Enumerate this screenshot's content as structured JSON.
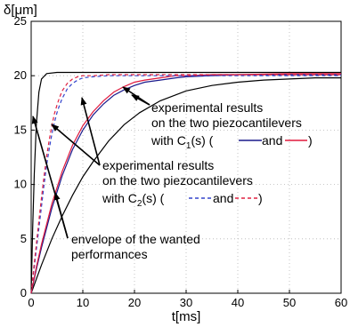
{
  "chart_data": {
    "type": "line",
    "xlabel": "t[ms]",
    "ylabel": "δ[μm]",
    "xlim": [
      0,
      60
    ],
    "ylim": [
      0,
      25
    ],
    "xticks": [
      "0",
      "10",
      "20",
      "30",
      "40",
      "50",
      "60"
    ],
    "yticks": [
      "0",
      "5",
      "10",
      "15",
      "20",
      "25"
    ],
    "grid": true,
    "series": [
      {
        "color": "#000000",
        "style": "solid",
        "x": [
          0,
          0.3,
          0.6,
          1.0,
          1.5,
          2.0,
          3,
          5,
          10,
          20,
          40,
          60
        ],
        "y": [
          0,
          6,
          11,
          15.5,
          18.5,
          19.7,
          20.2,
          20.3,
          20.3,
          20.3,
          20.3,
          20.3
        ]
      },
      {
        "color": "#000000",
        "style": "solid",
        "x": [
          0,
          2,
          4,
          6,
          8,
          10,
          12,
          15,
          18,
          21,
          25,
          30,
          35,
          40,
          45,
          50,
          55,
          60
        ],
        "y": [
          0,
          2.6,
          5.0,
          7.1,
          9.0,
          10.7,
          12.1,
          14.0,
          15.5,
          16.6,
          17.7,
          18.6,
          19.1,
          19.4,
          19.6,
          19.7,
          19.8,
          19.8
        ]
      },
      {
        "color": "#1a1a8c",
        "style": "solid",
        "x": [
          0,
          1,
          2,
          4,
          6,
          8,
          10,
          12,
          14,
          16,
          18,
          20,
          22,
          25,
          28,
          30,
          35,
          40,
          50,
          60
        ],
        "y": [
          0,
          2.2,
          4.2,
          7.8,
          10.8,
          13.2,
          15.0,
          16.4,
          17.4,
          18.2,
          18.7,
          19.1,
          19.4,
          19.6,
          19.8,
          19.9,
          20.0,
          20.1,
          20.1,
          20.1
        ]
      },
      {
        "color": "#e0183c",
        "style": "solid",
        "x": [
          0,
          1,
          2,
          4,
          6,
          8,
          10,
          12,
          14,
          16,
          18,
          20,
          22,
          25,
          28,
          30,
          35,
          40,
          50,
          60
        ],
        "y": [
          0,
          2.4,
          4.5,
          8.2,
          11.2,
          13.6,
          15.4,
          16.7,
          17.7,
          18.5,
          19.0,
          19.4,
          19.6,
          19.8,
          20.0,
          20.0,
          20.1,
          20.1,
          20.2,
          20.2
        ]
      },
      {
        "color": "#3344cc",
        "style": "dashed",
        "x": [
          0,
          0.5,
          1,
          1.5,
          2,
          2.5,
          3,
          3.5,
          4,
          4.5,
          5,
          5.5,
          6,
          7,
          8,
          9,
          10,
          12,
          15,
          20,
          30,
          40,
          60
        ],
        "y": [
          0,
          2.0,
          4.0,
          6.0,
          8.0,
          10.0,
          11.8,
          13.3,
          14.6,
          15.7,
          16.6,
          17.3,
          17.9,
          18.8,
          19.3,
          19.6,
          19.8,
          19.9,
          20.0,
          20.0,
          20.0,
          20.0,
          20.0
        ]
      },
      {
        "color": "#e02040",
        "style": "dashed",
        "x": [
          0,
          0.5,
          1,
          1.5,
          2,
          2.5,
          3,
          3.5,
          4,
          4.5,
          5,
          5.5,
          6,
          7,
          8,
          9,
          10,
          12,
          15,
          20,
          30,
          40,
          60
        ],
        "y": [
          0,
          2.3,
          4.5,
          6.7,
          8.8,
          10.8,
          12.6,
          14.1,
          15.4,
          16.5,
          17.3,
          18.0,
          18.6,
          19.3,
          19.7,
          19.9,
          20.0,
          20.0,
          20.1,
          20.1,
          20.1,
          20.1,
          20.1
        ]
      }
    ],
    "annotations": [
      {
        "lines": [
          "experimental results",
          "on the two piezocantilevers"
        ],
        "suffix": "and"
      },
      {
        "lines": [
          "experimental results",
          "on the two piezocantilevers"
        ],
        "suffix": "and"
      },
      {
        "lines": [
          "envelope of the wanted",
          "performances"
        ]
      }
    ],
    "annotation_labels": {
      "c1": "with C",
      "c1_sub": "1",
      "c1_rest": "(s)  (",
      "c1_close": ")",
      "c2": "with C",
      "c2_sub": "2",
      "c2_rest": "(s)  (",
      "c2_close": ")",
      "and": "and"
    }
  }
}
